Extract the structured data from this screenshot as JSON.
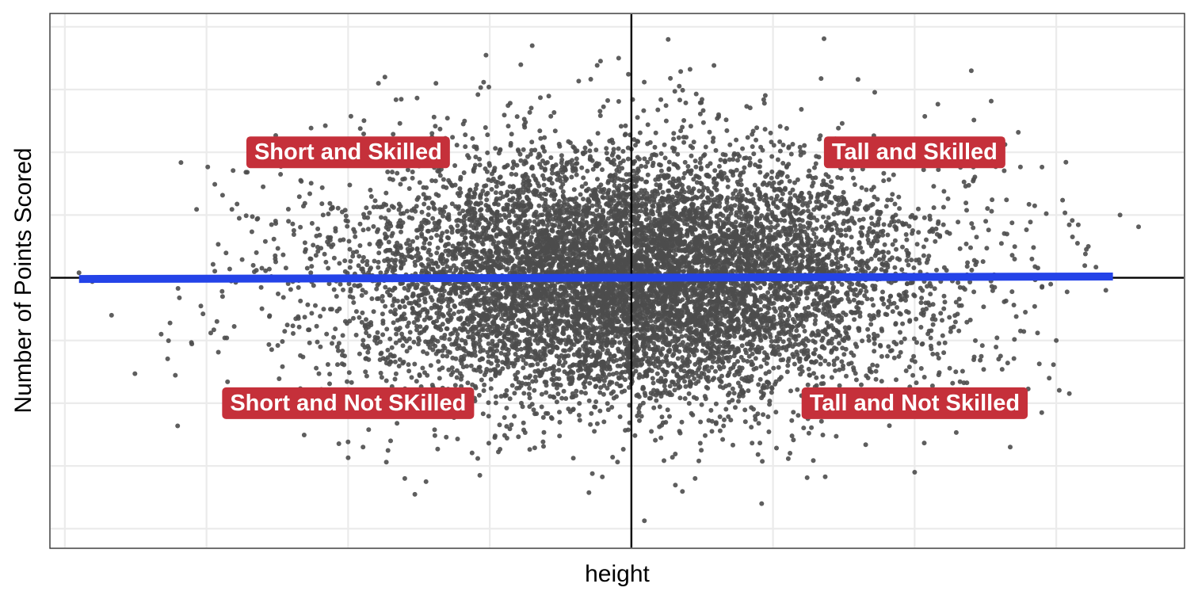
{
  "chart_data": {
    "type": "scatter",
    "title": "",
    "xlabel": "height",
    "ylabel": "Number of Points Scored",
    "xlim": [
      -4.1,
      3.9
    ],
    "ylim": [
      -4.3,
      4.2
    ],
    "x_gridlines": [
      -4,
      -3,
      -2,
      -1,
      0,
      1,
      2,
      3
    ],
    "y_gridlines": [
      -4,
      -3,
      -2,
      -1,
      0,
      1,
      2,
      3,
      4
    ],
    "tick_labels_shown": false,
    "grid": true,
    "reference_lines": {
      "x": 0,
      "y": 0,
      "color": "#000000"
    },
    "point_color": "#4d4d4d",
    "fit_line": {
      "x": [
        -3.9,
        3.4
      ],
      "y": [
        -0.02,
        0.02
      ],
      "color": "#2443e8"
    },
    "quadrant_labels": [
      {
        "text": "Short and Skilled",
        "x": -2.0,
        "y": 2.0
      },
      {
        "text": "Tall and Skilled",
        "x": 2.0,
        "y": 2.0
      },
      {
        "text": "Short and Not SKilled",
        "x": -2.0,
        "y": -2.0
      },
      {
        "text": "Tall and Not Skilled",
        "x": 2.0,
        "y": -2.0
      }
    ],
    "label_fill": "#c5303a",
    "series": [
      {
        "n_points": 10000,
        "points": [
          [
            -3.9,
            0.08
          ],
          [
            3.45,
            1.0
          ],
          [
            -2.6,
            1.45
          ],
          [
            -1.74,
            3.2
          ],
          [
            -0.7,
            3.7
          ],
          [
            0.26,
            3.8
          ],
          [
            -0.09,
            3.5
          ],
          [
            1.36,
            3.81
          ],
          [
            -1.38,
            3.1
          ],
          [
            1.6,
            3.16
          ],
          [
            2.4,
            3.3
          ],
          [
            -2.97,
            -0.88
          ],
          [
            -3.32,
            -0.9
          ],
          [
            -3.07,
            1.09
          ],
          [
            -3.04,
            -0.45
          ],
          [
            -2.72,
            0.99
          ],
          [
            -2.0,
            -2.87
          ],
          [
            -1.7,
            -2.6
          ],
          [
            -1.6,
            -3.2
          ],
          [
            -1.45,
            -3.25
          ],
          [
            -1.07,
            -3.15
          ],
          [
            0.45,
            -3.2
          ],
          [
            0.92,
            -3.6
          ],
          [
            2.0,
            -3.1
          ],
          [
            2.95,
            -1.6
          ],
          [
            3.0,
            -1.0
          ],
          [
            3.28,
            0.17
          ],
          [
            3.35,
            -0.2
          ],
          [
            3.15,
            0.55
          ],
          [
            -1.73,
            -2.94
          ]
        ]
      }
    ]
  }
}
